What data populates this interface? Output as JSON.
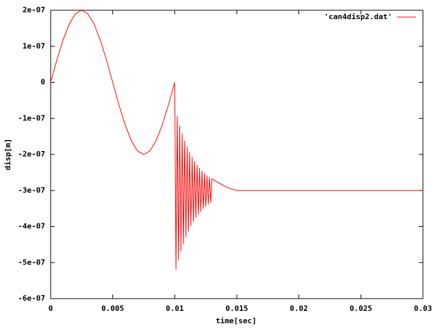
{
  "chart_data": {
    "type": "line",
    "xlabel": "time[sec]",
    "ylabel": "disp[m]",
    "xlim": [
      0,
      0.03
    ],
    "ylim": [
      -6e-07,
      2e-07
    ],
    "xticks": [
      0,
      0.005,
      0.01,
      0.015,
      0.02,
      0.025,
      0.03
    ],
    "yticks": [
      {
        "value": -6e-07,
        "label": "-6e-07"
      },
      {
        "value": -5e-07,
        "label": "-5e-07"
      },
      {
        "value": -4e-07,
        "label": "-4e-07"
      },
      {
        "value": -3e-07,
        "label": "-3e-07"
      },
      {
        "value": -2e-07,
        "label": "-2e-07"
      },
      {
        "value": -1e-07,
        "label": "-1e-07"
      },
      0,
      {
        "value": 1e-07,
        "label": "1e-07"
      },
      {
        "value": 2e-07,
        "label": "2e-07"
      }
    ],
    "legend": "top-right",
    "series": [
      {
        "name": "'can4disp2.dat'",
        "color": "#ff0000",
        "x": [
          0,
          0.0005,
          0.001,
          0.0015,
          0.002,
          0.0025,
          0.003,
          0.0035,
          0.004,
          0.0045,
          0.005,
          0.0055,
          0.006,
          0.0065,
          0.007,
          0.0075,
          0.008,
          0.0085,
          0.009,
          0.0095,
          0.01,
          0.0101,
          0.0102,
          0.0103,
          0.0104,
          0.0105,
          0.0106,
          0.0107,
          0.0108,
          0.0109,
          0.011,
          0.0111,
          0.0112,
          0.0113,
          0.0114,
          0.0115,
          0.0116,
          0.0117,
          0.0118,
          0.0119,
          0.012,
          0.0121,
          0.0122,
          0.0123,
          0.0124,
          0.0125,
          0.0126,
          0.0127,
          0.0128,
          0.0129,
          0.013,
          0.0132,
          0.0134,
          0.0136,
          0.0138,
          0.014,
          0.0145,
          0.015,
          0.016,
          0.03
        ],
        "values": [
          0,
          6.18e-08,
          1.176e-07,
          1.618e-07,
          1.902e-07,
          2e-07,
          1.902e-07,
          1.618e-07,
          1.176e-07,
          6.18e-08,
          0,
          -6.18e-08,
          -1.176e-07,
          -1.618e-07,
          -1.902e-07,
          -2e-07,
          -1.902e-07,
          -1.618e-07,
          -1.176e-07,
          -6.18e-08,
          0,
          -5.2e-07,
          -9.4e-08,
          -4.93e-07,
          -1.2e-07,
          -4.69e-07,
          -1.42e-07,
          -4.48e-07,
          -1.62e-07,
          -4.3e-07,
          -1.79e-07,
          -4.14e-07,
          -1.94e-07,
          -3.99e-07,
          -2.07e-07,
          -3.87e-07,
          -2.19e-07,
          -3.76e-07,
          -2.29e-07,
          -3.67e-07,
          -2.38e-07,
          -3.59e-07,
          -2.45e-07,
          -3.51e-07,
          -2.52e-07,
          -3.45e-07,
          -2.58e-07,
          -3.39e-07,
          -2.63e-07,
          -3.34e-07,
          -2.68e-07,
          -2.72e-07,
          -2.76e-07,
          -2.8e-07,
          -2.84e-07,
          -2.88e-07,
          -2.95e-07,
          -3e-07,
          -3e-07,
          -3e-07
        ]
      }
    ]
  }
}
